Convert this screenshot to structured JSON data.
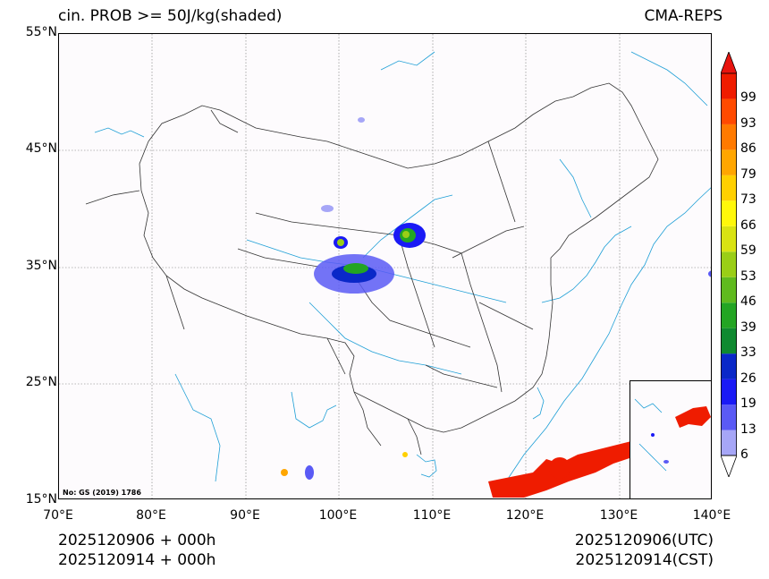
{
  "header": {
    "title_left": "cin. PROB >= 50J/kg(shaded)",
    "title_right": "CMA-REPS"
  },
  "map": {
    "lat_ticks": [
      "55°N",
      "45°N",
      "35°N",
      "25°N",
      "15°N"
    ],
    "lon_ticks": [
      "70°E",
      "80°E",
      "90°E",
      "100°E",
      "110°E",
      "120°E",
      "130°E",
      "140°E"
    ],
    "lat_range": [
      15,
      55
    ],
    "lon_range": [
      70,
      140
    ],
    "source_note": "No: GS (2019) 1786",
    "colors": {
      "coast": "#1e9fd6",
      "border": "#333333",
      "grid": "#777777"
    }
  },
  "colorbar": {
    "labels": [
      "6",
      "13",
      "19",
      "26",
      "33",
      "39",
      "46",
      "53",
      "59",
      "66",
      "73",
      "79",
      "86",
      "93",
      "99"
    ],
    "colors": [
      "#a6a6f7",
      "#5a5af5",
      "#1a1af5",
      "#0a28c8",
      "#0f8a30",
      "#23a523",
      "#5fba1e",
      "#9ace16",
      "#d9e312",
      "#fff80a",
      "#ffd000",
      "#ffa600",
      "#ff7a00",
      "#ff4a00",
      "#ef1c00"
    ],
    "over_color": "#e8140f",
    "under_color": "#ffffff"
  },
  "footer": {
    "init_utc": "2025120906  +  000h",
    "init_cst": "2025120914  +  000h",
    "valid_utc": "2025120906(UTC)",
    "valid_cst": "2025120914(CST)"
  }
}
